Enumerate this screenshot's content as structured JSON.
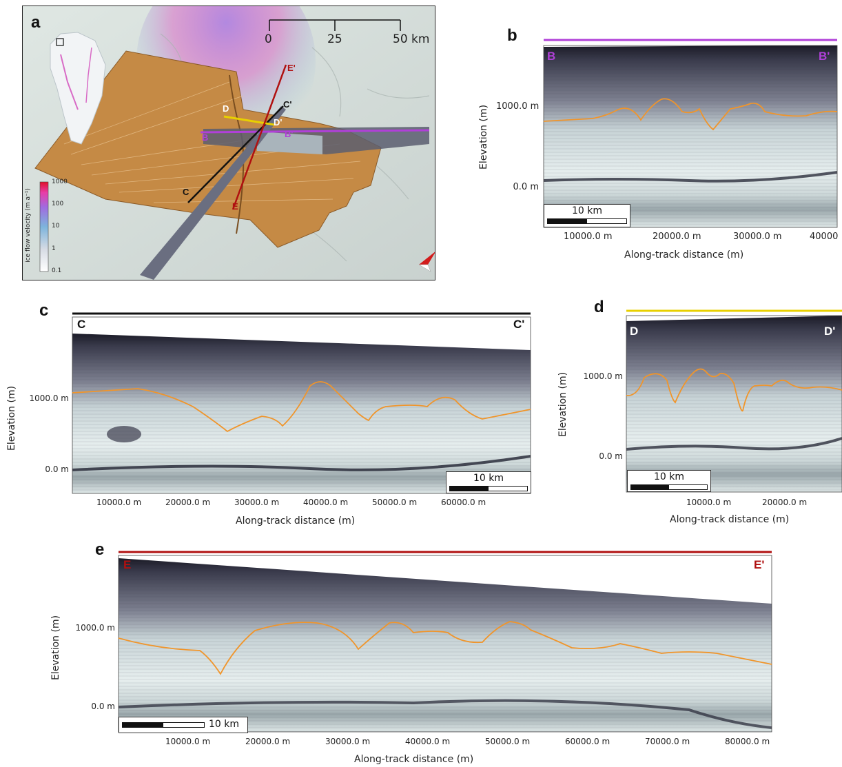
{
  "panels": {
    "a": {
      "label": "a",
      "scalebar_ticks": [
        "0",
        "25",
        "50 km"
      ],
      "legend": {
        "title": "ice flow velocity (m a⁻¹)",
        "ticks": [
          "1000",
          "100",
          "10",
          "1",
          "0.1"
        ]
      },
      "profile_labels": [
        "B",
        "B'",
        "C",
        "C'",
        "D",
        "D'",
        "E",
        "E'"
      ],
      "colors": {
        "B": "#b040d8",
        "C": "#111111",
        "D": "#e8d000",
        "E": "#b01010",
        "surface": "#c58a45"
      }
    },
    "b": {
      "label": "b",
      "start": "B",
      "end": "B'",
      "line_color": "#b040d8",
      "ylabel": "Elevation (m)",
      "xlabel": "Along-track distance (m)",
      "yticks": [
        "1000.0 m",
        "0.0 m"
      ],
      "xticks": [
        "10000.0 m",
        "20000.0 m",
        "30000.0 m",
        "40000"
      ],
      "scalebar": "10 km"
    },
    "c": {
      "label": "c",
      "start": "C",
      "end": "C'",
      "line_color": "#111111",
      "ylabel": "Elevation (m)",
      "xlabel": "Along-track distance (m)",
      "yticks": [
        "1000.0 m",
        "0.0 m"
      ],
      "xticks": [
        "10000.0 m",
        "20000.0 m",
        "30000.0 m",
        "40000.0 m",
        "50000.0 m",
        "60000.0 m"
      ],
      "scalebar": "10 km"
    },
    "d": {
      "label": "d",
      "start": "D",
      "end": "D'",
      "line_color": "#e8d000",
      "ylabel": "Elevation (m)",
      "xlabel": "Along-track distance (m)",
      "yticks": [
        "1000.0 m",
        "0.0 m"
      ],
      "xticks": [
        "10000.0 m",
        "20000.0 m"
      ],
      "scalebar": "10 km"
    },
    "e": {
      "label": "e",
      "start": "E",
      "end": "E'",
      "line_color": "#b01010",
      "ylabel": "Elevation (m)",
      "xlabel": "Along-track distance (m)",
      "yticks": [
        "1000.0 m",
        "0.0 m"
      ],
      "xticks": [
        "10000.0 m",
        "20000.0 m",
        "30000.0 m",
        "40000.0 m",
        "50000.0 m",
        "60000.0 m",
        "70000.0 m",
        "80000.0 m"
      ],
      "scalebar": "10 km"
    }
  }
}
